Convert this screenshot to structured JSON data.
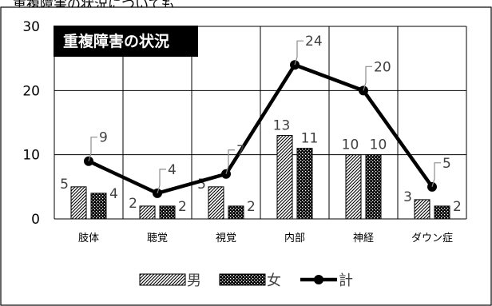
{
  "header_clipped": "重複障害の状況についても",
  "chart_data": {
    "type": "bar",
    "title": "重複障害の状況",
    "categories": [
      "肢体",
      "聴覚",
      "視覚",
      "内部",
      "神経",
      "ダウン症"
    ],
    "series": [
      {
        "name": "男",
        "kind": "bar",
        "pattern": "diagonal-hatch",
        "values": [
          5,
          2,
          5,
          13,
          10,
          3
        ]
      },
      {
        "name": "女",
        "kind": "bar",
        "pattern": "checker",
        "values": [
          4,
          2,
          2,
          11,
          10,
          2
        ]
      },
      {
        "name": "計",
        "kind": "line",
        "values": [
          9,
          4,
          7,
          24,
          20,
          5
        ]
      }
    ],
    "ylim": [
      0,
      30
    ],
    "yticks": [
      0,
      10,
      20,
      30
    ],
    "grid": true,
    "legend": "bottom",
    "colors": {
      "line": "#000000",
      "grid": "#000000",
      "title_bg": "#000000",
      "title_fg": "#ffffff"
    }
  }
}
